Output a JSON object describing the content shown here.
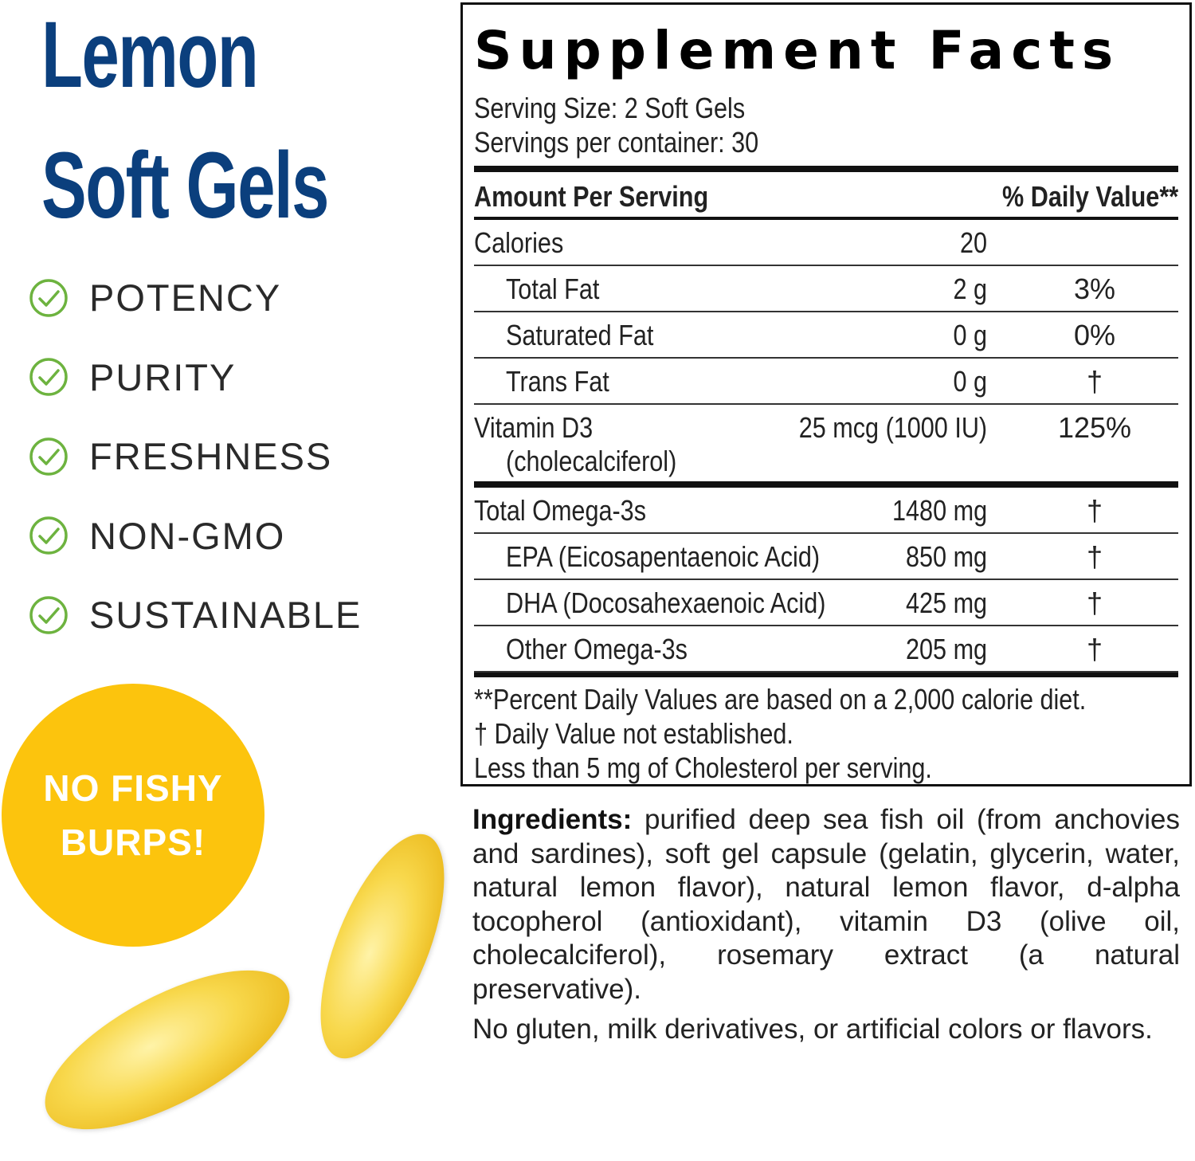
{
  "product": {
    "title_line1": "Lemon",
    "title_line2": "Soft Gels",
    "features": [
      "POTENCY",
      "PURITY",
      "FRESHNESS",
      "NON-GMO",
      "SUSTAINABLE"
    ],
    "badge_line1": "NO FISHY",
    "badge_line2": "BURPS!",
    "colors": {
      "title": "#0b3f7d",
      "check": "#6db33f",
      "badge": "#fcc40d"
    }
  },
  "facts": {
    "title": "Supplement Facts",
    "serving_size": "Serving Size: 2 Soft Gels",
    "servings": "Servings per container: 30",
    "amount_header": "Amount Per Serving",
    "dv_header": "% Daily Value**",
    "rows": [
      {
        "name": "Calories",
        "amount": "20",
        "dv": "",
        "indent": false
      },
      {
        "name": "Total Fat",
        "amount": "2 g",
        "dv": "3%",
        "indent": true
      },
      {
        "name": "Saturated Fat",
        "amount": "0 g",
        "dv": "0%",
        "indent": true
      },
      {
        "name": "Trans Fat",
        "amount": "0 g",
        "dv": "†",
        "indent": true
      },
      {
        "name": "Vitamin D3",
        "sub": "(cholecalciferol)",
        "amount": "25 mcg (1000 IU)",
        "dv": "125%",
        "indent": false
      },
      {
        "name": "Total Omega-3s",
        "amount": "1480 mg",
        "dv": "†",
        "indent": false
      },
      {
        "name": "EPA (Eicosapentaenoic Acid)",
        "amount": "850 mg",
        "dv": "†",
        "indent": true
      },
      {
        "name": "DHA (Docosahexaenoic Acid)",
        "amount": "425 mg",
        "dv": "†",
        "indent": true
      },
      {
        "name": "Other Omega-3s",
        "amount": "205 mg",
        "dv": "†",
        "indent": true
      }
    ],
    "footnotes": [
      "**Percent Daily Values are based on a 2,000 calorie diet.",
      "†  Daily Value not established.",
      "Less than 5 mg of Cholesterol per serving."
    ]
  },
  "ingredients": {
    "label": "Ingredients:",
    "text": " purified deep sea fish oil (from anchovies and sardines), soft gel capsule (gelatin, glycerin, water, natural lemon flavor), natural lemon flavor, d-alpha tocopherol (antioxidant), vitamin D3 (olive oil, cholecalciferol), rosemary extract (a natural preservative).",
    "note": "No gluten, milk derivatives, or artificial colors or flavors."
  }
}
